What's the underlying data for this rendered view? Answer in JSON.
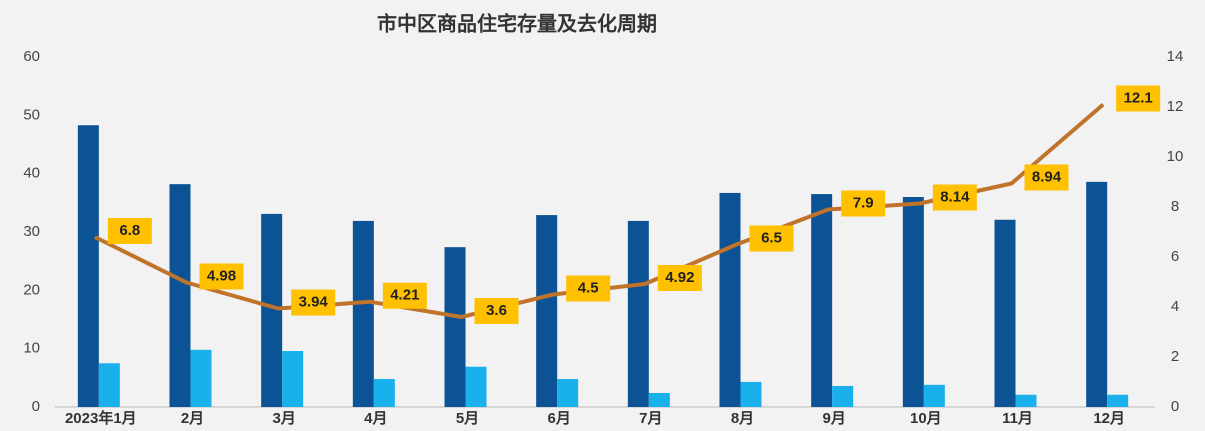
{
  "chart_data": {
    "type": "bar-line",
    "title": "市中区商品住宅存量及去化周期",
    "categories": [
      "2023年1月",
      "2月",
      "3月",
      "4月",
      "5月",
      "6月",
      "7月",
      "8月",
      "9月",
      "10月",
      "11月",
      "12月"
    ],
    "series": [
      {
        "type": "bar",
        "color": "#0b5394",
        "values": [
          48.3,
          38.2,
          33.1,
          31.9,
          27.4,
          32.9,
          31.9,
          36.7,
          36.5,
          36.0,
          32.1,
          38.6
        ]
      },
      {
        "type": "bar",
        "color": "#1ab0ec",
        "values": [
          7.5,
          9.8,
          9.6,
          4.8,
          6.9,
          4.8,
          2.4,
          4.3,
          3.6,
          3.8,
          2.1,
          2.1
        ]
      },
      {
        "type": "line",
        "axis": "y2",
        "color": "#c0732a",
        "label_color": "#ffc000",
        "values": [
          6.8,
          4.98,
          3.94,
          4.21,
          3.6,
          4.5,
          4.92,
          6.5,
          7.9,
          8.14,
          8.94,
          12.1
        ]
      }
    ],
    "ylim": [
      0,
      60
    ],
    "yticks": [
      0,
      10,
      20,
      30,
      40,
      50,
      60
    ],
    "y2lim": [
      0,
      14
    ],
    "y2ticks": [
      0,
      2,
      4,
      6,
      8,
      10,
      12,
      14
    ]
  }
}
